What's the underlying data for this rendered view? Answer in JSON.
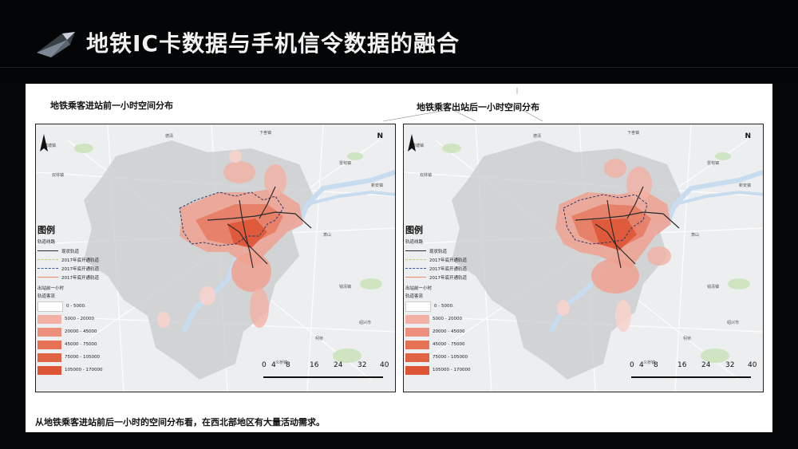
{
  "title": "地铁IC卡数据与手机信令数据的融合",
  "colors": {
    "header_bg": "#040506",
    "density_1": "#f7d3cc",
    "density_2": "#f2b1a4",
    "density_3": "#ec8f7c",
    "density_4": "#e67256",
    "density_5": "#dd5535",
    "line_existing": "#2b2b2b",
    "line_2017_open": "#b8d46e",
    "line_2017_build": "#3b5ba8",
    "line_2017_end": "#f08a6a"
  },
  "panels": [
    {
      "title": "地铁乘客进站前一小时空间分布",
      "legend": {
        "heading": "图例",
        "lines_heading": "轨道线路",
        "lines": [
          {
            "label": "现状轨道",
            "color": "#2b2b2b"
          },
          {
            "label": "2017年底开通轨道",
            "color": "#b8d46e"
          },
          {
            "label": "2017年底开通轨道",
            "color": "#3b5ba8"
          },
          {
            "label": "2017年底开通轨道",
            "color": "#f08a6a"
          }
        ],
        "density_heading": "出站前一小时",
        "density_sub": "轨道客流",
        "classes": [
          {
            "label": "0 - 5000.",
            "color": "#ffffff"
          },
          {
            "label": "5000 - 20000",
            "color": "#f2b1a4"
          },
          {
            "label": "20000 - 45000",
            "color": "#ec8f7c"
          },
          {
            "label": "45000 - 75000",
            "color": "#e67256"
          },
          {
            "label": "75000 - 105000",
            "color": "#e06344"
          },
          {
            "label": "105000 - 170000",
            "color": "#dd5535"
          }
        ]
      },
      "scale": [
        "0",
        "4",
        "8",
        "16",
        "24",
        "32",
        "40"
      ],
      "north": "N"
    },
    {
      "title": "地铁乘客出站后一小时空间分布",
      "legend": {
        "heading": "图例",
        "lines_heading": "轨道线路",
        "lines": [
          {
            "label": "现状轨道",
            "color": "#2b2b2b"
          },
          {
            "label": "2017年底开通轨道",
            "color": "#b8d46e"
          },
          {
            "label": "2017年底开通轨道",
            "color": "#3b5ba8"
          },
          {
            "label": "2017年底开通轨道",
            "color": "#f08a6a"
          }
        ],
        "density_heading": "出站前一小时",
        "density_sub": "轨道客流",
        "classes": [
          {
            "label": "0 - 5000.",
            "color": "#ffffff"
          },
          {
            "label": "5000 - 20000",
            "color": "#f2b1a4"
          },
          {
            "label": "20000 - 45000",
            "color": "#ec8f7c"
          },
          {
            "label": "45000 - 75000",
            "color": "#e67256"
          },
          {
            "label": "75000 - 105000",
            "color": "#e06344"
          },
          {
            "label": "105000 - 170000",
            "color": "#dd5535"
          }
        ]
      },
      "scale": [
        "0",
        "4",
        "8",
        "16",
        "24",
        "32",
        "40"
      ],
      "north": "N"
    }
  ],
  "place_labels": [
    "德清",
    "下舍镇",
    "钱塘镇",
    "雷甸镇",
    "新安镇",
    "杭州",
    "余杭",
    "萧山",
    "绍兴市",
    "柯桥",
    "钱清镇",
    "双林镇",
    "义桥镇"
  ],
  "footer_note": "从地铁乘客进站前后一小时的空间分布看，在西北部地区有大量活动需求。"
}
